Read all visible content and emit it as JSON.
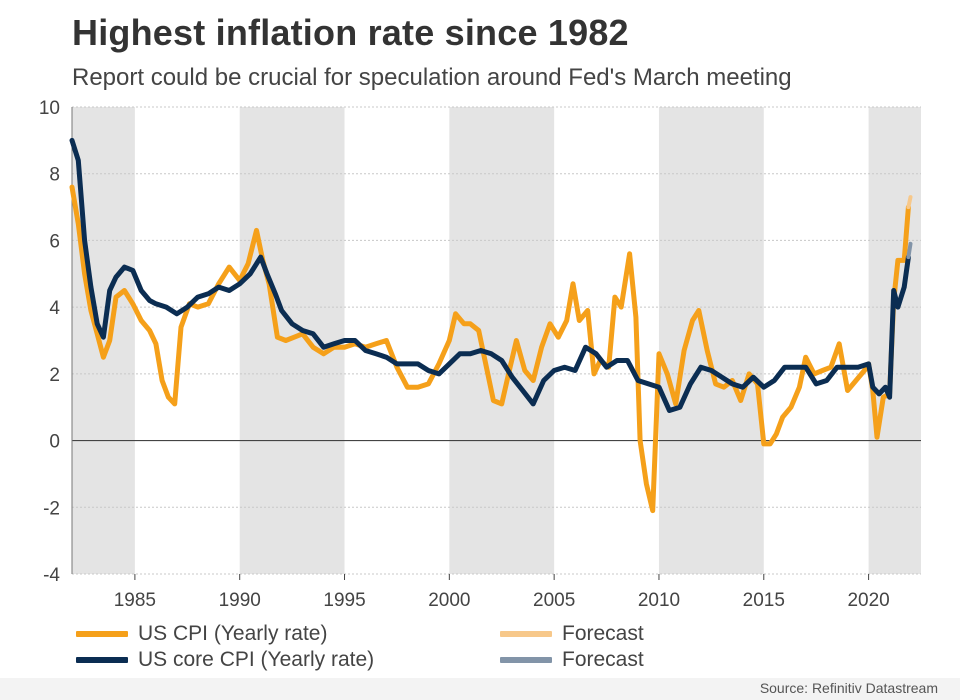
{
  "title": "Highest inflation rate since 1982",
  "subtitle": "Report could be crucial for speculation around Fed's March meeting",
  "source": "Source: Refinitiv Datastream",
  "colors": {
    "cpi": "#f5a01a",
    "core": "#0b2d52",
    "cpi_forecast": "#f7c88a",
    "core_forecast": "#8294a8",
    "band": "#e4e4e4",
    "grid": "#c8c8c8",
    "zero": "#444444"
  },
  "legend": [
    {
      "label": "US CPI (Yearly rate)",
      "color": "#f5a01a"
    },
    {
      "label": "Forecast",
      "color": "#f7c88a"
    },
    {
      "label": "US core CPI (Yearly rate)",
      "color": "#0b2d52"
    },
    {
      "label": "Forecast",
      "color": "#8294a8"
    }
  ],
  "chart_data": {
    "type": "line",
    "title": "Highest inflation rate since 1982",
    "subtitle": "Report could be crucial for speculation around Fed's March meeting",
    "xlabel": "",
    "ylabel": "",
    "xlim": [
      1982.0,
      2022.5
    ],
    "ylim": [
      -4,
      10
    ],
    "yticks": [
      -4,
      -2,
      0,
      2,
      4,
      6,
      8,
      10
    ],
    "xticks": [
      1985,
      1990,
      1995,
      2000,
      2005,
      2010,
      2015,
      2020
    ],
    "grid": true,
    "shaded_periods": [
      [
        1982.0,
        1985.0
      ],
      [
        1990.0,
        1995.0
      ],
      [
        2000.0,
        2005.0
      ],
      [
        2010.0,
        2015.0
      ],
      [
        2020.0,
        2022.5
      ]
    ],
    "series": [
      {
        "name": "US CPI (Yearly rate)",
        "x": [
          1982.0,
          1982.3,
          1982.6,
          1982.9,
          1983.2,
          1983.5,
          1983.8,
          1984.1,
          1984.5,
          1984.9,
          1985.3,
          1985.7,
          1986.0,
          1986.3,
          1986.6,
          1986.9,
          1987.2,
          1987.6,
          1988.0,
          1988.5,
          1989.0,
          1989.5,
          1990.0,
          1990.4,
          1990.8,
          1991.1,
          1991.4,
          1991.8,
          1992.2,
          1992.6,
          1993.0,
          1993.5,
          1994.0,
          1994.5,
          1995.0,
          1995.5,
          1996.0,
          1996.5,
          1997.0,
          1997.5,
          1998.0,
          1998.5,
          1999.0,
          1999.5,
          2000.0,
          2000.3,
          2000.7,
          2001.0,
          2001.4,
          2001.8,
          2002.1,
          2002.5,
          2002.9,
          2003.2,
          2003.6,
          2004.0,
          2004.4,
          2004.8,
          2005.2,
          2005.6,
          2005.9,
          2006.2,
          2006.6,
          2006.9,
          2007.2,
          2007.6,
          2007.9,
          2008.2,
          2008.6,
          2008.9,
          2009.1,
          2009.4,
          2009.7,
          2010.0,
          2010.4,
          2010.8,
          2011.2,
          2011.6,
          2011.9,
          2012.3,
          2012.7,
          2013.1,
          2013.5,
          2013.9,
          2014.3,
          2014.7,
          2015.0,
          2015.3,
          2015.6,
          2015.9,
          2016.3,
          2016.7,
          2017.0,
          2017.4,
          2017.8,
          2018.2,
          2018.6,
          2019.0,
          2019.4,
          2019.8,
          2020.0,
          2020.2,
          2020.4,
          2020.7,
          2021.0,
          2021.2,
          2021.4,
          2021.7,
          2021.9
        ],
        "y": [
          7.6,
          6.5,
          5.0,
          3.9,
          3.2,
          2.5,
          3.0,
          4.3,
          4.5,
          4.1,
          3.6,
          3.3,
          2.9,
          1.8,
          1.3,
          1.1,
          3.4,
          4.1,
          4.0,
          4.1,
          4.7,
          5.2,
          4.8,
          5.3,
          6.3,
          5.4,
          4.7,
          3.1,
          3.0,
          3.1,
          3.2,
          2.8,
          2.6,
          2.8,
          2.8,
          2.9,
          2.8,
          2.9,
          3.0,
          2.2,
          1.6,
          1.6,
          1.7,
          2.3,
          3.0,
          3.8,
          3.5,
          3.5,
          3.3,
          2.1,
          1.2,
          1.1,
          2.2,
          3.0,
          2.1,
          1.8,
          2.8,
          3.5,
          3.1,
          3.6,
          4.7,
          3.6,
          3.9,
          2.0,
          2.4,
          2.2,
          4.3,
          4.0,
          5.6,
          3.7,
          0.0,
          -1.3,
          -2.1,
          2.6,
          2.0,
          1.1,
          2.7,
          3.6,
          3.9,
          2.7,
          1.7,
          1.6,
          1.8,
          1.2,
          2.0,
          1.7,
          -0.1,
          -0.1,
          0.2,
          0.7,
          1.0,
          1.6,
          2.5,
          2.0,
          2.1,
          2.2,
          2.9,
          1.5,
          1.8,
          2.1,
          2.3,
          1.5,
          0.1,
          1.3,
          1.4,
          4.2,
          5.4,
          5.4,
          7.0
        ]
      },
      {
        "name": "US core CPI (Yearly rate)",
        "x": [
          1982.0,
          1982.3,
          1982.6,
          1982.9,
          1983.2,
          1983.5,
          1983.8,
          1984.1,
          1984.5,
          1984.9,
          1985.3,
          1985.7,
          1986.0,
          1986.5,
          1987.0,
          1987.5,
          1988.0,
          1988.5,
          1989.0,
          1989.5,
          1990.0,
          1990.5,
          1991.0,
          1991.3,
          1991.7,
          1992.0,
          1992.5,
          1993.0,
          1993.5,
          1994.0,
          1994.5,
          1995.0,
          1995.5,
          1996.0,
          1996.5,
          1997.0,
          1997.5,
          1998.0,
          1998.5,
          1999.0,
          1999.5,
          2000.0,
          2000.5,
          2001.0,
          2001.5,
          2002.0,
          2002.5,
          2003.0,
          2003.5,
          2004.0,
          2004.5,
          2005.0,
          2005.5,
          2006.0,
          2006.5,
          2007.0,
          2007.5,
          2008.0,
          2008.5,
          2009.0,
          2009.5,
          2010.0,
          2010.5,
          2011.0,
          2011.5,
          2012.0,
          2012.5,
          2013.0,
          2013.5,
          2014.0,
          2014.5,
          2015.0,
          2015.5,
          2016.0,
          2016.5,
          2017.0,
          2017.5,
          2018.0,
          2018.5,
          2019.0,
          2019.5,
          2020.0,
          2020.2,
          2020.5,
          2020.8,
          2021.0,
          2021.2,
          2021.4,
          2021.7,
          2021.9
        ],
        "y": [
          9.0,
          8.4,
          6.0,
          4.6,
          3.5,
          3.1,
          4.5,
          4.9,
          5.2,
          5.1,
          4.5,
          4.2,
          4.1,
          4.0,
          3.8,
          4.0,
          4.3,
          4.4,
          4.6,
          4.5,
          4.7,
          5.0,
          5.5,
          5.0,
          4.4,
          3.9,
          3.5,
          3.3,
          3.2,
          2.8,
          2.9,
          3.0,
          3.0,
          2.7,
          2.6,
          2.5,
          2.3,
          2.3,
          2.3,
          2.1,
          2.0,
          2.3,
          2.6,
          2.6,
          2.7,
          2.6,
          2.4,
          1.9,
          1.5,
          1.1,
          1.8,
          2.1,
          2.2,
          2.1,
          2.8,
          2.6,
          2.2,
          2.4,
          2.4,
          1.8,
          1.7,
          1.6,
          0.9,
          1.0,
          1.7,
          2.2,
          2.1,
          1.9,
          1.7,
          1.6,
          1.9,
          1.6,
          1.8,
          2.2,
          2.2,
          2.2,
          1.7,
          1.8,
          2.2,
          2.2,
          2.2,
          2.3,
          1.6,
          1.4,
          1.6,
          1.3,
          4.5,
          4.0,
          4.6,
          5.5
        ]
      },
      {
        "name": "Forecast",
        "x": [
          2021.9,
          2022.0
        ],
        "y": [
          7.0,
          7.3
        ]
      },
      {
        "name": "Forecast",
        "x": [
          2021.9,
          2022.0
        ],
        "y": [
          5.5,
          5.9
        ]
      }
    ]
  }
}
